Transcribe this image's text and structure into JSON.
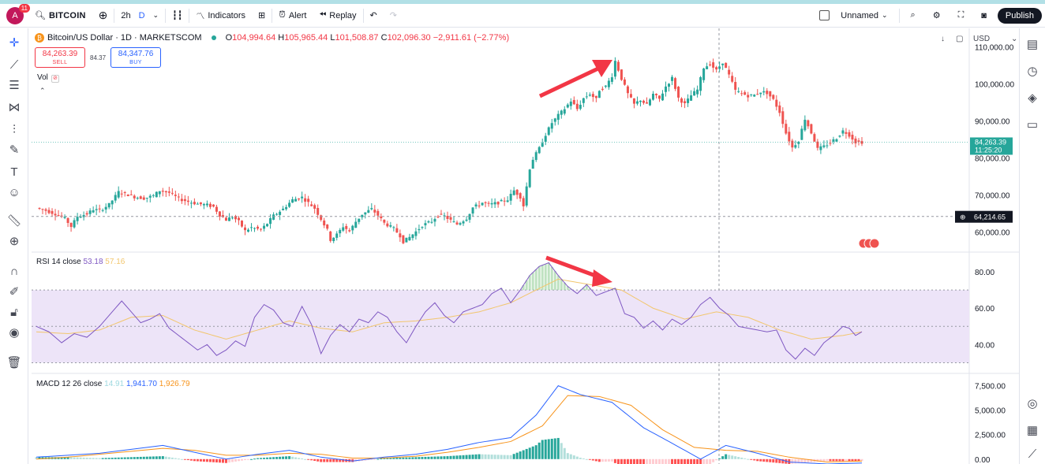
{
  "toolbar": {
    "avatar_letter": "A",
    "avatar_badge": "11",
    "symbol": "BITCOIN",
    "interval": "2h",
    "interval_active": "D",
    "indicators_label": "Indicators",
    "alert_label": "Alert",
    "replay_label": "Replay",
    "layout_name": "Unnamed",
    "publish_label": "Publish"
  },
  "legend": {
    "title": "Bitcoin/US Dollar · 1D · MARKETSCOM",
    "o_label": "O",
    "o_value": "104,994.64",
    "h_label": "H",
    "h_value": "105,965.44",
    "l_label": "L",
    "l_value": "101,508.87",
    "c_label": "C",
    "c_value": "102,096.30",
    "change": "−2,911.61 (−2.77%)",
    "sell_price": "84,263.39",
    "sell_label": "SELL",
    "spread": "84.37",
    "buy_price": "84,347.76",
    "buy_label": "BUY",
    "vol_label": "Vol"
  },
  "currency": "USD",
  "colors": {
    "up": "#26a69a",
    "down": "#ef5350",
    "rsi": "#7e57c2",
    "rsi_ma": "#f2c66d",
    "macd": "#2962ff",
    "signal": "#f7931a",
    "annotation": "#f23645"
  },
  "chart_data": [
    {
      "type": "candlestick",
      "title": "Bitcoin/US Dollar · 1D · MARKETSCOM",
      "ylim": [
        55000,
        115000
      ],
      "y_ticks": [
        "110,000.00",
        "100,000.00",
        "90,000.00",
        "80,000.00",
        "70,000.00",
        "60,000.00"
      ],
      "y_tick_values": [
        110000,
        100000,
        90000,
        80000,
        70000,
        60000
      ],
      "last_price_label": "84,263.39",
      "last_price_value": 84263,
      "countdown": "11:25:20",
      "crosshair_label": "64,214.65",
      "crosshair_value": 64215,
      "close_path": [
        [
          0,
          66500
        ],
        [
          3,
          65800
        ],
        [
          6,
          64900
        ],
        [
          9,
          63700
        ],
        [
          11,
          61500
        ],
        [
          13,
          64200
        ],
        [
          16,
          64900
        ],
        [
          18,
          66100
        ],
        [
          20,
          65800
        ],
        [
          23,
          67400
        ],
        [
          26,
          70800
        ],
        [
          28,
          70400
        ],
        [
          31,
          69500
        ],
        [
          34,
          69100
        ],
        [
          37,
          69800
        ],
        [
          39,
          71200
        ],
        [
          42,
          70600
        ],
        [
          45,
          69000
        ],
        [
          48,
          68200
        ],
        [
          51,
          67600
        ],
        [
          54,
          67300
        ],
        [
          56,
          66800
        ],
        [
          58,
          64600
        ],
        [
          60,
          63300
        ],
        [
          62,
          64100
        ],
        [
          64,
          62800
        ],
        [
          66,
          60300
        ],
        [
          68,
          61200
        ],
        [
          71,
          60600
        ],
        [
          73,
          62300
        ],
        [
          75,
          64400
        ],
        [
          78,
          66200
        ],
        [
          81,
          68700
        ],
        [
          84,
          69400
        ],
        [
          86,
          67900
        ],
        [
          88,
          66400
        ],
        [
          90,
          63500
        ],
        [
          92,
          60500
        ],
        [
          93,
          57900
        ],
        [
          95,
          59300
        ],
        [
          97,
          61500
        ],
        [
          99,
          60200
        ],
        [
          101,
          62800
        ],
        [
          103,
          64800
        ],
        [
          106,
          66200
        ],
        [
          108,
          64500
        ],
        [
          110,
          62400
        ],
        [
          113,
          60900
        ],
        [
          115,
          59000
        ],
        [
          116,
          57400
        ],
        [
          118,
          58600
        ],
        [
          120,
          60100
        ],
        [
          122,
          61800
        ],
        [
          125,
          62900
        ],
        [
          127,
          64600
        ],
        [
          129,
          64300
        ],
        [
          131,
          63100
        ],
        [
          133,
          62100
        ],
        [
          136,
          63700
        ],
        [
          138,
          66600
        ],
        [
          141,
          67900
        ],
        [
          143,
          67400
        ],
        [
          146,
          67900
        ],
        [
          149,
          68800
        ],
        [
          151,
          71200
        ],
        [
          153,
          69500
        ],
        [
          154,
          67100
        ],
        [
          155,
          72300
        ],
        [
          156,
          77200
        ],
        [
          157,
          79700
        ],
        [
          159,
          82600
        ],
        [
          161,
          86300
        ],
        [
          163,
          89500
        ],
        [
          165,
          91500
        ],
        [
          167,
          93300
        ],
        [
          169,
          95400
        ],
        [
          171,
          93200
        ],
        [
          173,
          96100
        ],
        [
          175,
          97300
        ],
        [
          177,
          95800
        ],
        [
          178,
          98400
        ],
        [
          180,
          99300
        ],
        [
          182,
          102200
        ],
        [
          183,
          106200
        ],
        [
          185,
          101400
        ],
        [
          187,
          97300
        ],
        [
          189,
          94500
        ],
        [
          191,
          95700
        ],
        [
          193,
          94300
        ],
        [
          195,
          97200
        ],
        [
          197,
          95900
        ],
        [
          199,
          99300
        ],
        [
          201,
          101600
        ],
        [
          203,
          96200
        ],
        [
          205,
          94500
        ],
        [
          207,
          96900
        ],
        [
          209,
          98400
        ],
        [
          211,
          104400
        ],
        [
          213,
          105400
        ],
        [
          215,
          103600
        ],
        [
          217,
          105900
        ],
        [
          219,
          102300
        ],
        [
          221,
          98200
        ],
        [
          223,
          97400
        ],
        [
          225,
          96800
        ],
        [
          227,
          97000
        ],
        [
          229,
          97900
        ],
        [
          231,
          97600
        ],
        [
          233,
          95700
        ],
        [
          235,
          92400
        ],
        [
          237,
          86700
        ],
        [
          239,
          82800
        ],
        [
          241,
          84800
        ],
        [
          243,
          90600
        ],
        [
          245,
          86800
        ],
        [
          246,
          84700
        ],
        [
          247,
          82400
        ],
        [
          249,
          83100
        ],
        [
          251,
          84200
        ],
        [
          253,
          85400
        ],
        [
          255,
          87300
        ],
        [
          256,
          86800
        ],
        [
          257,
          86200
        ],
        [
          259,
          84300
        ],
        [
          261,
          84263
        ]
      ]
    },
    {
      "type": "line",
      "title": "RSI 14 close",
      "series": [
        {
          "name": "RSI",
          "value": "53.18"
        },
        {
          "name": "MA",
          "value": "57.16"
        }
      ],
      "ylim": [
        25,
        90
      ],
      "y_ticks": [
        "80.00",
        "60.00",
        "40.00"
      ],
      "y_tick_values": [
        80,
        60,
        40
      ],
      "band": [
        30,
        70
      ],
      "rsi_path": [
        [
          0,
          50
        ],
        [
          4,
          47
        ],
        [
          8,
          41
        ],
        [
          12,
          46
        ],
        [
          16,
          44
        ],
        [
          20,
          50
        ],
        [
          24,
          58
        ],
        [
          27,
          64
        ],
        [
          30,
          58
        ],
        [
          33,
          52
        ],
        [
          36,
          54
        ],
        [
          39,
          57
        ],
        [
          42,
          49
        ],
        [
          45,
          45
        ],
        [
          48,
          41
        ],
        [
          51,
          37
        ],
        [
          54,
          40
        ],
        [
          57,
          34
        ],
        [
          60,
          37
        ],
        [
          63,
          42
        ],
        [
          66,
          39
        ],
        [
          69,
          55
        ],
        [
          72,
          62
        ],
        [
          75,
          59
        ],
        [
          78,
          52
        ],
        [
          81,
          50
        ],
        [
          84,
          61
        ],
        [
          87,
          51
        ],
        [
          90,
          35
        ],
        [
          93,
          45
        ],
        [
          96,
          51
        ],
        [
          99,
          47
        ],
        [
          102,
          54
        ],
        [
          105,
          52
        ],
        [
          108,
          58
        ],
        [
          111,
          55
        ],
        [
          114,
          47
        ],
        [
          117,
          41
        ],
        [
          120,
          50
        ],
        [
          123,
          58
        ],
        [
          126,
          63
        ],
        [
          129,
          56
        ],
        [
          132,
          52
        ],
        [
          135,
          58
        ],
        [
          138,
          60
        ],
        [
          141,
          62
        ],
        [
          144,
          68
        ],
        [
          147,
          71
        ],
        [
          150,
          63
        ],
        [
          153,
          70
        ],
        [
          156,
          78
        ],
        [
          159,
          83
        ],
        [
          162,
          85
        ],
        [
          165,
          78
        ],
        [
          168,
          72
        ],
        [
          171,
          68
        ],
        [
          174,
          73
        ],
        [
          177,
          67
        ],
        [
          180,
          69
        ],
        [
          183,
          71
        ],
        [
          186,
          57
        ],
        [
          189,
          55
        ],
        [
          192,
          49
        ],
        [
          195,
          53
        ],
        [
          198,
          48
        ],
        [
          201,
          54
        ],
        [
          204,
          51
        ],
        [
          207,
          55
        ],
        [
          210,
          62
        ],
        [
          213,
          66
        ],
        [
          216,
          60
        ],
        [
          219,
          56
        ],
        [
          222,
          50
        ],
        [
          225,
          49
        ],
        [
          228,
          48
        ],
        [
          231,
          47
        ],
        [
          234,
          48
        ],
        [
          237,
          37
        ],
        [
          240,
          32
        ],
        [
          243,
          38
        ],
        [
          246,
          34
        ],
        [
          249,
          41
        ],
        [
          252,
          45
        ],
        [
          255,
          50
        ],
        [
          257,
          49
        ],
        [
          259,
          45
        ],
        [
          261,
          47
        ]
      ],
      "ma_path": [
        [
          0,
          47
        ],
        [
          10,
          46
        ],
        [
          20,
          48
        ],
        [
          30,
          55
        ],
        [
          40,
          56
        ],
        [
          50,
          48
        ],
        [
          60,
          43
        ],
        [
          70,
          48
        ],
        [
          80,
          53
        ],
        [
          90,
          49
        ],
        [
          100,
          47
        ],
        [
          110,
          52
        ],
        [
          120,
          53
        ],
        [
          130,
          55
        ],
        [
          140,
          58
        ],
        [
          150,
          63
        ],
        [
          158,
          70
        ],
        [
          165,
          76
        ],
        [
          175,
          73
        ],
        [
          185,
          70
        ],
        [
          195,
          60
        ],
        [
          205,
          54
        ],
        [
          215,
          58
        ],
        [
          225,
          55
        ],
        [
          235,
          48
        ],
        [
          245,
          43
        ],
        [
          255,
          45
        ],
        [
          261,
          47
        ]
      ]
    },
    {
      "type": "line",
      "title": "MACD 12 26 close",
      "series": [
        {
          "name": "Histogram",
          "value": "14.91"
        },
        {
          "name": "MACD",
          "value": "1,941.70"
        },
        {
          "name": "Signal",
          "value": "1,926.79"
        }
      ],
      "ylim": [
        -500,
        8600
      ],
      "y_ticks": [
        "7,500.00",
        "5,000.00",
        "2,500.00",
        "0.00"
      ],
      "y_tick_values": [
        7500,
        5000,
        2500,
        0
      ],
      "macd_path": [
        [
          0,
          200
        ],
        [
          10,
          400
        ],
        [
          20,
          600
        ],
        [
          30,
          1000
        ],
        [
          40,
          1400
        ],
        [
          50,
          700
        ],
        [
          60,
          0
        ],
        [
          70,
          500
        ],
        [
          80,
          900
        ],
        [
          90,
          200
        ],
        [
          100,
          -200
        ],
        [
          110,
          200
        ],
        [
          120,
          500
        ],
        [
          130,
          1000
        ],
        [
          140,
          1700
        ],
        [
          150,
          2200
        ],
        [
          158,
          4500
        ],
        [
          165,
          7500
        ],
        [
          172,
          6600
        ],
        [
          182,
          5800
        ],
        [
          192,
          3200
        ],
        [
          200,
          1800
        ],
        [
          210,
          0
        ],
        [
          218,
          1400
        ],
        [
          228,
          600
        ],
        [
          238,
          -300
        ],
        [
          250,
          -500
        ],
        [
          261,
          -400
        ]
      ],
      "signal_path": [
        [
          0,
          0
        ],
        [
          10,
          200
        ],
        [
          20,
          500
        ],
        [
          30,
          800
        ],
        [
          40,
          1100
        ],
        [
          50,
          900
        ],
        [
          60,
          400
        ],
        [
          70,
          400
        ],
        [
          80,
          600
        ],
        [
          90,
          500
        ],
        [
          100,
          100
        ],
        [
          110,
          100
        ],
        [
          120,
          300
        ],
        [
          130,
          700
        ],
        [
          140,
          1200
        ],
        [
          150,
          1800
        ],
        [
          160,
          3400
        ],
        [
          168,
          6500
        ],
        [
          178,
          6400
        ],
        [
          188,
          5500
        ],
        [
          198,
          3000
        ],
        [
          208,
          1200
        ],
        [
          218,
          900
        ],
        [
          228,
          800
        ],
        [
          238,
          200
        ],
        [
          250,
          -300
        ],
        [
          261,
          -200
        ]
      ]
    }
  ]
}
